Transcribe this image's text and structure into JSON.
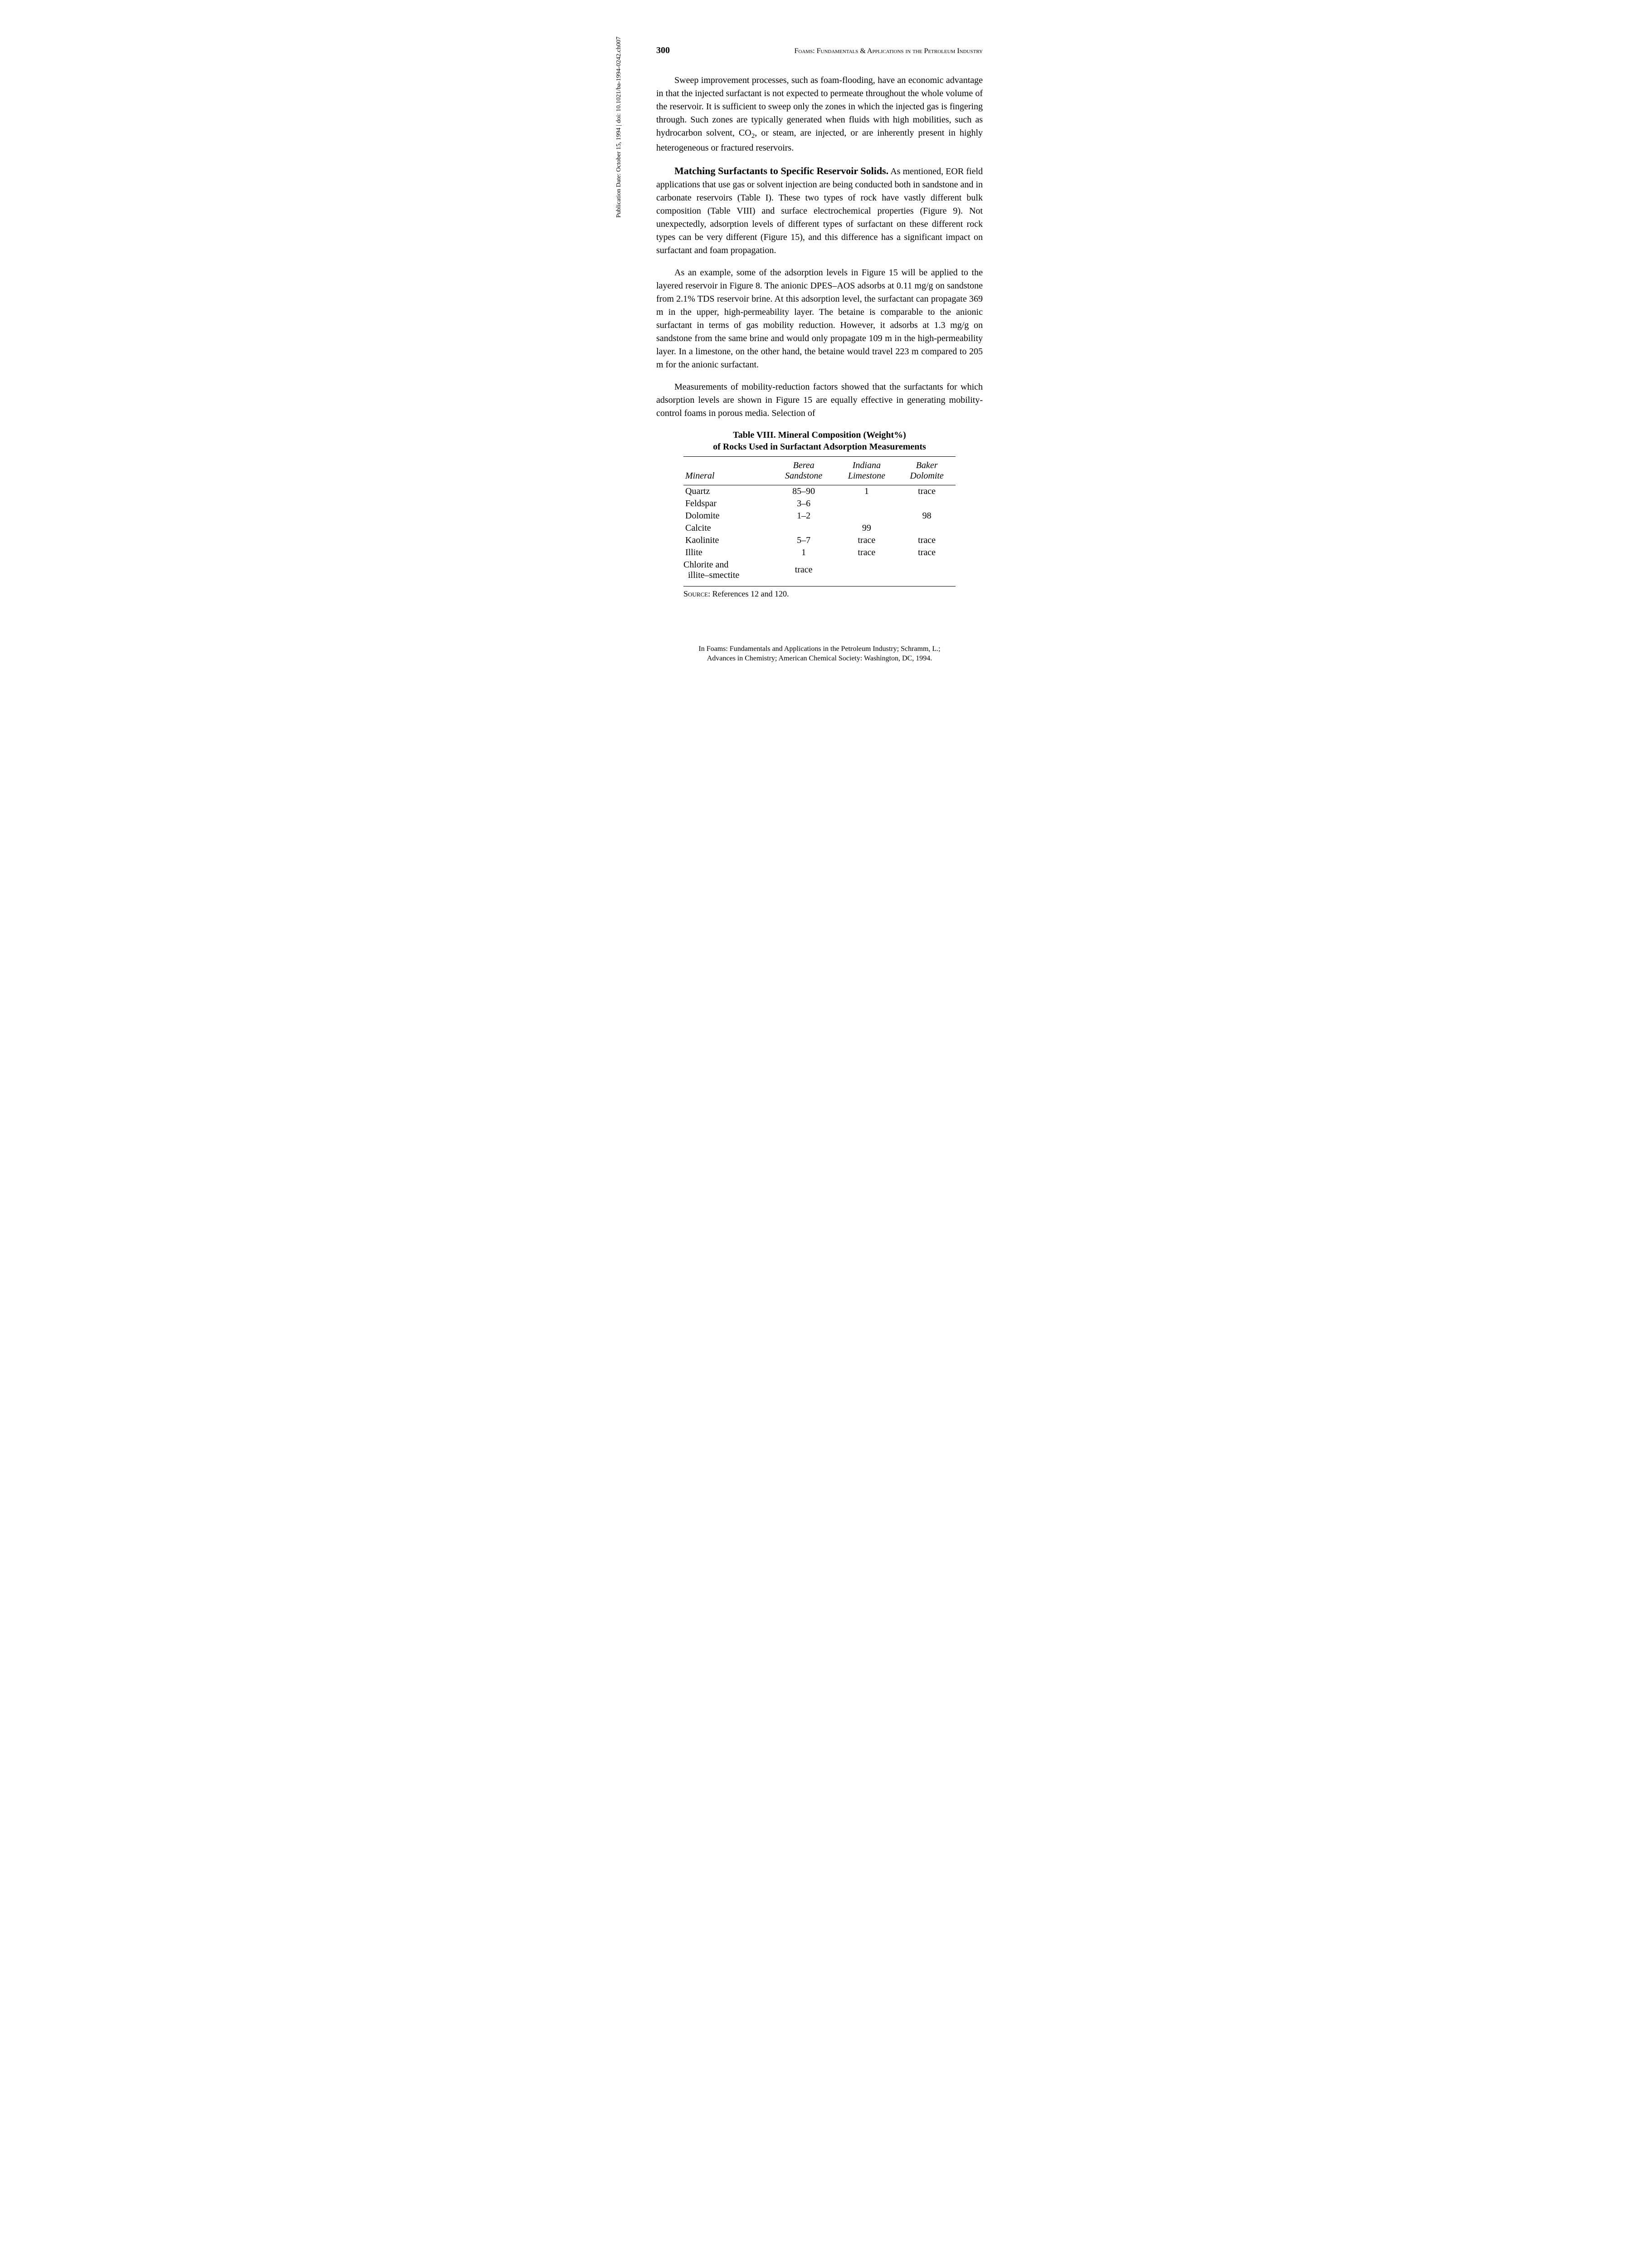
{
  "header": {
    "page_number": "300",
    "running_head": "Foams: Fundamentals & Applications in the Petroleum Industry"
  },
  "sidebar": {
    "text": "Publication Date: October 15, 1994 | doi: 10.1021/ba-1994-0242.ch007"
  },
  "paragraphs": {
    "p1": "Sweep improvement processes, such as foam-flooding, have an economic advantage in that the injected surfactant is not expected to permeate throughout the whole volume of the reservoir. It is sufficient to sweep only the zones in which the injected gas is fingering through. Such zones are typically generated when fluids with high mobilities, such as hydrocarbon solvent, CO",
    "p1_sub": "2",
    "p1_tail": ", or steam, are injected, or are inherently present in highly heterogeneous or fractured reservoirs.",
    "heading": "Matching Surfactants to Specific Reservoir Solids.",
    "p2": " As mentioned, EOR field applications that use gas or solvent injection are being conducted both in sandstone and in carbonate reservoirs (Table I). These two types of rock have vastly different bulk composition (Table VIII) and surface electrochemical properties (Figure 9). Not unexpectedly, adsorption levels of different types of surfactant on these different rock types can be very different (Figure 15), and this difference has a significant impact on surfactant and foam propagation.",
    "p3": "As an example, some of the adsorption levels in Figure 15 will be applied to the layered reservoir in Figure 8. The anionic DPES–AOS adsorbs at 0.11 mg/g on sandstone from 2.1% TDS reservoir brine. At this adsorption level, the surfactant can propagate 369 m in the upper, high-permeability layer. The betaine is comparable to the anionic surfactant in terms of gas mobility reduction. However, it adsorbs at 1.3 mg/g on sandstone from the same brine and would only propagate 109 m in the high-permeability layer. In a limestone, on the other hand, the betaine would travel 223 m compared to 205 m for the anionic surfactant.",
    "p4": "Measurements of mobility-reduction factors showed that the surfactants for which adsorption levels are shown in Figure 15 are equally effective in generating mobility-control foams in porous media. Selection of"
  },
  "table": {
    "caption_line1": "Table VIII.  Mineral Composition (Weight%)",
    "caption_line2": "of Rocks Used in Surfactant Adsorption Measurements",
    "columns": [
      "Mineral",
      "Berea Sandstone",
      "Indiana Limestone",
      "Baker Dolomite"
    ],
    "rows": [
      [
        "Quartz",
        "85–90",
        "1",
        "trace"
      ],
      [
        "Feldspar",
        "3–6",
        "",
        ""
      ],
      [
        "Dolomite",
        "1–2",
        "",
        "98"
      ],
      [
        "Calcite",
        "",
        "99",
        ""
      ],
      [
        "Kaolinite",
        "5–7",
        "trace",
        "trace"
      ],
      [
        "Illite",
        "1",
        "trace",
        "trace"
      ],
      [
        "Chlorite and illite–smectite",
        "trace",
        "",
        ""
      ]
    ],
    "source_label": "Source:",
    "source_text": " References 12 and 120."
  },
  "footer": {
    "line1": "In Foams: Fundamentals and Applications in the Petroleum Industry; Schramm, L.;",
    "line2": "Advances in Chemistry; American Chemical Society: Washington, DC, 1994."
  }
}
